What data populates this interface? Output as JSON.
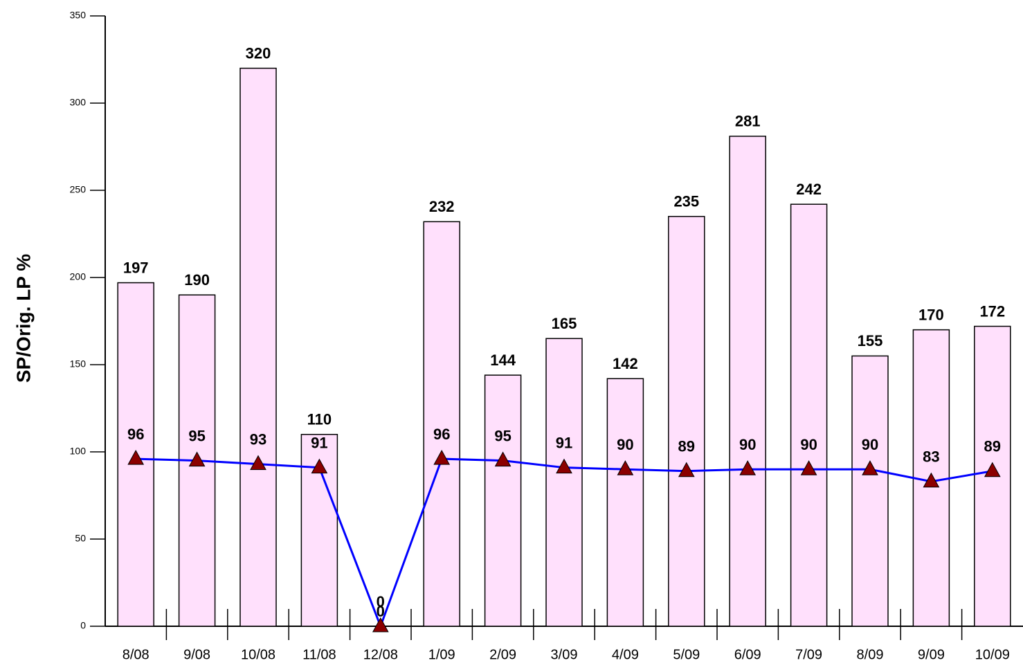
{
  "chart_data": {
    "type": "bar",
    "y_label": "SP/Orig. LP %",
    "categories": [
      "8/08",
      "9/08",
      "10/08",
      "11/08",
      "12/08",
      "1/09",
      "2/09",
      "3/09",
      "4/09",
      "5/09",
      "6/09",
      "7/09",
      "8/09",
      "9/09",
      "10/09"
    ],
    "series": [
      {
        "type": "bar",
        "color": "#ffe0fc",
        "values": [
          197,
          190,
          320,
          110,
          0,
          232,
          144,
          165,
          142,
          235,
          281,
          242,
          155,
          170,
          172
        ]
      },
      {
        "type": "line",
        "color": "#0000ff",
        "marker_color": "#8b0000",
        "values": [
          96,
          95,
          93,
          91,
          0,
          96,
          95,
          91,
          90,
          89,
          90,
          90,
          90,
          83,
          89
        ]
      }
    ],
    "ylim": [
      0,
      350
    ],
    "yticks": [
      0,
      50,
      100,
      150,
      200,
      250,
      300,
      350
    ]
  }
}
